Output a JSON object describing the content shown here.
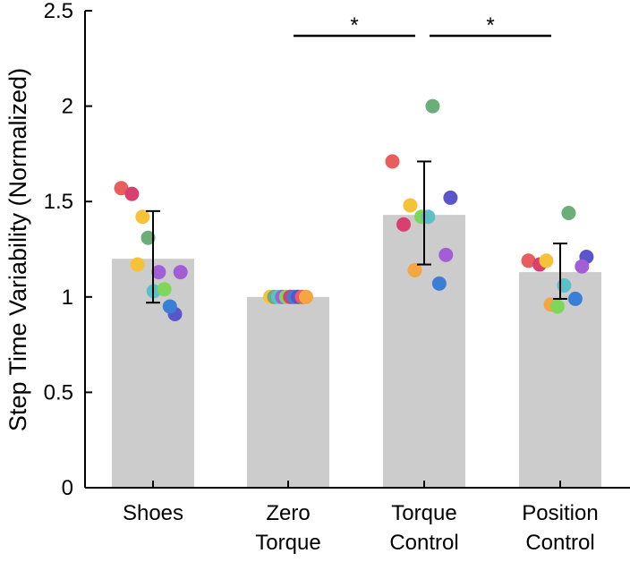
{
  "chart_data": {
    "type": "bar",
    "title": "",
    "xlabel": "",
    "ylabel": "Step Time Variability (Normalized)",
    "ylim": [
      0,
      2.5
    ],
    "yticks": [
      0,
      0.5,
      1,
      1.5,
      2,
      2.5
    ],
    "ytick_labels": [
      "0",
      "0.5",
      "1",
      "1.5",
      "2",
      "2.5"
    ],
    "categories": [
      {
        "id": "shoes",
        "lines": [
          "Shoes"
        ]
      },
      {
        "id": "zero-torque",
        "lines": [
          "Zero",
          "Torque"
        ]
      },
      {
        "id": "torque-control",
        "lines": [
          "Torque",
          "Control"
        ]
      },
      {
        "id": "position-control",
        "lines": [
          "Position",
          "Control"
        ]
      }
    ],
    "values": [
      1.2,
      1.0,
      1.43,
      1.13
    ],
    "error_bars": [
      {
        "lower": 0.97,
        "upper": 1.45
      },
      null,
      {
        "lower": 1.17,
        "upper": 1.71
      },
      {
        "lower": 0.99,
        "upper": 1.28
      }
    ],
    "participant_colors": [
      "#e85d5d",
      "#d94070",
      "#f5a643",
      "#f6c338",
      "#7fd75a",
      "#6cae78",
      "#5bc0c8",
      "#3b7ed6",
      "#5a55c8",
      "#a35ed6"
    ],
    "participants": [
      [
        1.57,
        1.54,
        1.42,
        1.17,
        1.31,
        1.13,
        1.03,
        1.04,
        0.91,
        0.95,
        1.13
      ],
      [
        1.0,
        1.0,
        1.0,
        1.0,
        1.0,
        1.0,
        1.0,
        1.0,
        1.0,
        1.0
      ],
      [
        1.71,
        1.38,
        1.14,
        1.48,
        1.42,
        2.0,
        1.42,
        1.07,
        1.52,
        1.22
      ],
      [
        1.19,
        1.17,
        0.96,
        1.19,
        0.95,
        1.44,
        1.06,
        0.99,
        1.21,
        1.16
      ]
    ],
    "point_colors": [
      [
        "#e85d5d",
        "#d94070",
        "#f6c338",
        "#f6c338",
        "#6cae78",
        "#a35ed6",
        "#5bc0c8",
        "#7fd75a",
        "#5a55c8",
        "#3b7ed6",
        "#a35ed6"
      ],
      [
        "#f6c338",
        "#6cae78",
        "#5bc0c8",
        "#a35ed6",
        "#7fd75a",
        "#d94070",
        "#3b7ed6",
        "#5a55c8",
        "#e85d5d",
        "#f5a643"
      ],
      [
        "#e85d5d",
        "#d94070",
        "#f5a643",
        "#f6c338",
        "#7fd75a",
        "#6cae78",
        "#5bc0c8",
        "#3b7ed6",
        "#5a55c8",
        "#a35ed6"
      ],
      [
        "#e85d5d",
        "#d94070",
        "#f5a643",
        "#f6c338",
        "#7fd75a",
        "#6cae78",
        "#5bc0c8",
        "#3b7ed6",
        "#5a55c8",
        "#a35ed6"
      ]
    ],
    "significance": [
      {
        "from": 1,
        "to": 2,
        "label": "*"
      },
      {
        "from": 2,
        "to": 3,
        "label": "*"
      }
    ],
    "legend": "none",
    "grid": false
  }
}
